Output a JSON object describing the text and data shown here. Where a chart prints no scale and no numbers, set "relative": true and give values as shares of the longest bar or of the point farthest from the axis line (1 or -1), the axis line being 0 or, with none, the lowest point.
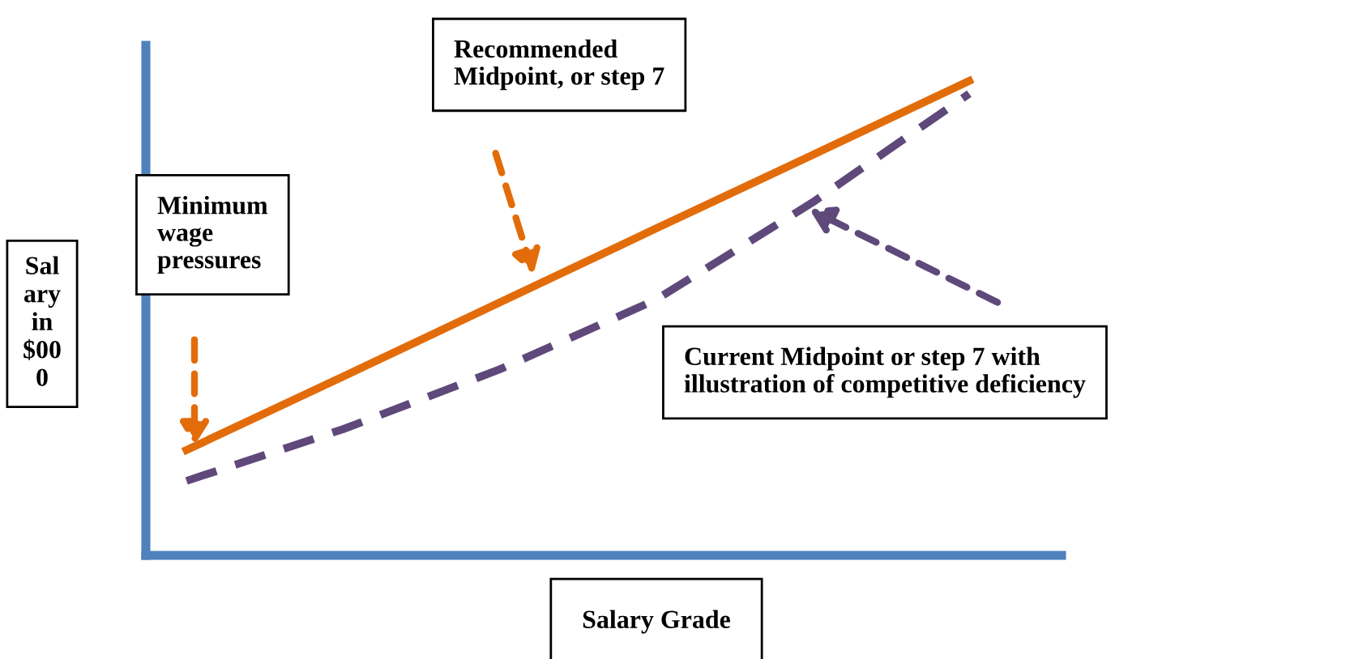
{
  "chart_data": {
    "type": "line",
    "relative": true,
    "xlabel": "Salary Grade",
    "ylabel": "Salary in $000",
    "categories": [
      null,
      null,
      null,
      null,
      null,
      null
    ],
    "series": [
      {
        "color": "#e36c0a",
        "line_style": "solid",
        "values": [
          0.222,
          0.377,
          0.533,
          0.689,
          0.844,
          1
        ]
      },
      {
        "color": "#5f497a",
        "line_style": "dashed",
        "values": [
          0.157,
          0.266,
          0.392,
          0.539,
          0.744,
          0.973
        ]
      }
    ],
    "annotations": [
      "Recommended\nMidpoint, or step 7",
      "Minimum\nwage\npressures",
      "Current Midpoint or step 7 with\nillustration of competitive deficiency"
    ],
    "marker": "none"
  }
}
